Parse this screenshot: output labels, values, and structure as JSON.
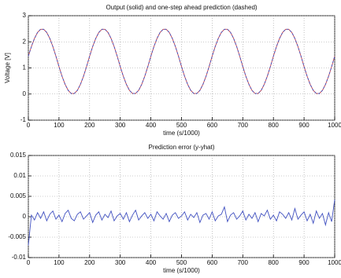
{
  "chart_data": [
    {
      "type": "line",
      "title": "Output (solid) and one-step ahead prediction (dashed)",
      "xlabel": "time (s/1000)",
      "ylabel": "Voltage [V]",
      "xlim": [
        0,
        1000
      ],
      "xticks": [
        0,
        100,
        200,
        300,
        400,
        500,
        600,
        700,
        800,
        900,
        1000
      ],
      "ylim": [
        -1,
        3
      ],
      "yticks": [
        -1,
        0,
        1,
        2,
        3
      ],
      "grid": true,
      "x": [
        0,
        10,
        20,
        30,
        40,
        50,
        60,
        70,
        80,
        90,
        100,
        110,
        120,
        130,
        140,
        150,
        160,
        170,
        180,
        190,
        200,
        210,
        220,
        230,
        240,
        250,
        260,
        270,
        280,
        290,
        300,
        310,
        320,
        330,
        340,
        350,
        360,
        370,
        380,
        390,
        400,
        410,
        420,
        430,
        440,
        450,
        460,
        470,
        480,
        490,
        500,
        510,
        520,
        530,
        540,
        550,
        560,
        570,
        580,
        590,
        600,
        610,
        620,
        630,
        640,
        650,
        660,
        670,
        680,
        690,
        700,
        710,
        720,
        730,
        740,
        750,
        760,
        770,
        780,
        790,
        800,
        810,
        820,
        830,
        840,
        850,
        860,
        870,
        880,
        890,
        900,
        910,
        920,
        930,
        940,
        950,
        960,
        970,
        980,
        990,
        1000
      ],
      "series": [
        {
          "color": "#d04040",
          "linestyle": "solid",
          "values": [
            1.45,
            1.82,
            2.13,
            2.36,
            2.48,
            2.48,
            2.36,
            2.13,
            1.82,
            1.45,
            1.05,
            0.68,
            0.37,
            0.14,
            0.02,
            0.02,
            0.14,
            0.37,
            0.68,
            1.05,
            1.45,
            1.82,
            2.13,
            2.36,
            2.48,
            2.48,
            2.36,
            2.13,
            1.82,
            1.45,
            1.05,
            0.68,
            0.37,
            0.14,
            0.02,
            0.02,
            0.14,
            0.37,
            0.68,
            1.05,
            1.45,
            1.82,
            2.13,
            2.36,
            2.48,
            2.48,
            2.36,
            2.13,
            1.82,
            1.45,
            1.05,
            0.68,
            0.37,
            0.14,
            0.02,
            0.02,
            0.14,
            0.37,
            0.68,
            1.05,
            1.45,
            1.82,
            2.13,
            2.36,
            2.48,
            2.48,
            2.36,
            2.13,
            1.82,
            1.45,
            1.05,
            0.68,
            0.37,
            0.14,
            0.02,
            0.02,
            0.14,
            0.37,
            0.68,
            1.05,
            1.45,
            1.82,
            2.13,
            2.36,
            2.48,
            2.48,
            2.36,
            2.13,
            1.82,
            1.45,
            1.05,
            0.68,
            0.37,
            0.14,
            0.02,
            0.02,
            0.14,
            0.37,
            0.68,
            1.05,
            1.45
          ]
        },
        {
          "color": "#4050c0",
          "linestyle": "dashed",
          "values": [
            1.45,
            1.82,
            2.13,
            2.36,
            2.48,
            2.48,
            2.36,
            2.13,
            1.82,
            1.45,
            1.05,
            0.68,
            0.37,
            0.14,
            0.02,
            0.02,
            0.14,
            0.37,
            0.68,
            1.05,
            1.45,
            1.82,
            2.13,
            2.36,
            2.48,
            2.48,
            2.36,
            2.13,
            1.82,
            1.45,
            1.05,
            0.68,
            0.37,
            0.14,
            0.02,
            0.02,
            0.14,
            0.37,
            0.68,
            1.05,
            1.45,
            1.82,
            2.13,
            2.36,
            2.48,
            2.48,
            2.36,
            2.13,
            1.82,
            1.45,
            1.05,
            0.68,
            0.37,
            0.14,
            0.02,
            0.02,
            0.14,
            0.37,
            0.68,
            1.05,
            1.45,
            1.82,
            2.13,
            2.36,
            2.48,
            2.48,
            2.36,
            2.13,
            1.82,
            1.45,
            1.05,
            0.68,
            0.37,
            0.14,
            0.02,
            0.02,
            0.14,
            0.37,
            0.68,
            1.05,
            1.45,
            1.82,
            2.13,
            2.36,
            2.48,
            2.48,
            2.36,
            2.13,
            1.82,
            1.45,
            1.05,
            0.68,
            0.37,
            0.14,
            0.02,
            0.02,
            0.14,
            0.37,
            0.68,
            1.05,
            1.45
          ]
        }
      ]
    },
    {
      "type": "line",
      "title": "Prediction error (y-yhat)",
      "xlabel": "time (s/1000)",
      "xlim": [
        0,
        1000
      ],
      "xticks": [
        0,
        100,
        200,
        300,
        400,
        500,
        600,
        700,
        800,
        900,
        1000
      ],
      "ylim": [
        -0.01,
        0.015
      ],
      "yticks": [
        -0.01,
        -0.005,
        0,
        0.005,
        0.01,
        0.015
      ],
      "grid": true,
      "x": [
        0,
        10,
        20,
        30,
        40,
        50,
        60,
        70,
        80,
        90,
        100,
        110,
        120,
        130,
        140,
        150,
        160,
        170,
        180,
        190,
        200,
        210,
        220,
        230,
        240,
        250,
        260,
        270,
        280,
        290,
        300,
        310,
        320,
        330,
        340,
        350,
        360,
        370,
        380,
        390,
        400,
        410,
        420,
        430,
        440,
        450,
        460,
        470,
        480,
        490,
        500,
        510,
        520,
        530,
        540,
        550,
        560,
        570,
        580,
        590,
        600,
        610,
        620,
        630,
        640,
        650,
        660,
        670,
        680,
        690,
        700,
        710,
        720,
        730,
        740,
        750,
        760,
        770,
        780,
        790,
        800,
        810,
        820,
        830,
        840,
        850,
        860,
        870,
        880,
        890,
        900,
        910,
        920,
        930,
        940,
        950,
        960,
        970,
        980,
        990,
        1000
      ],
      "series": [
        {
          "color": "#4050c0",
          "linestyle": "solid",
          "values": [
            -0.007,
            0.0004,
            -0.0008,
            0.001,
            -0.0004,
            0.0012,
            -0.001,
            0.0006,
            0.0014,
            -0.0006,
            0.0004,
            -0.0012,
            0.0008,
            0.0016,
            -0.0004,
            -0.001,
            0.0006,
            0.0012,
            -0.0006,
            0.0002,
            0.001,
            -0.0014,
            0.0004,
            0.0012,
            -0.0008,
            0.0006,
            -0.0002,
            0.0014,
            -0.001,
            0.0002,
            0.0008,
            -0.0006,
            0.001,
            -0.0012,
            0.0004,
            0.0016,
            -0.0008,
            0.0002,
            0.001,
            -0.0004,
            0.0006,
            -0.001,
            0.0012,
            0.0002,
            -0.0006,
            0.0008,
            -0.0012,
            0.0004,
            0.001,
            -0.0004,
            0.0002,
            0.0012,
            -0.0008,
            0.0006,
            -0.0002,
            0.001,
            -0.0014,
            0.0004,
            0.0008,
            -0.0006,
            0.0012,
            -0.001,
            0.0002,
            0.0006,
            0.0024,
            -0.0012,
            0.0004,
            0.001,
            -0.0006,
            0.0002,
            0.0014,
            -0.0008,
            0.0006,
            -0.0004,
            0.001,
            -0.0012,
            0.0008,
            0.0002,
            0.0016,
            -0.0006,
            0.0004,
            -0.001,
            0.0012,
            0.0006,
            -0.0004,
            0.001,
            -0.0008,
            0.002,
            -0.0006,
            0.0004,
            0.0012,
            -0.001,
            0.0006,
            -0.0016,
            0.0014,
            -0.0004,
            0.0008,
            -0.002,
            0.001,
            -0.0012,
            0.0042
          ]
        }
      ]
    }
  ]
}
